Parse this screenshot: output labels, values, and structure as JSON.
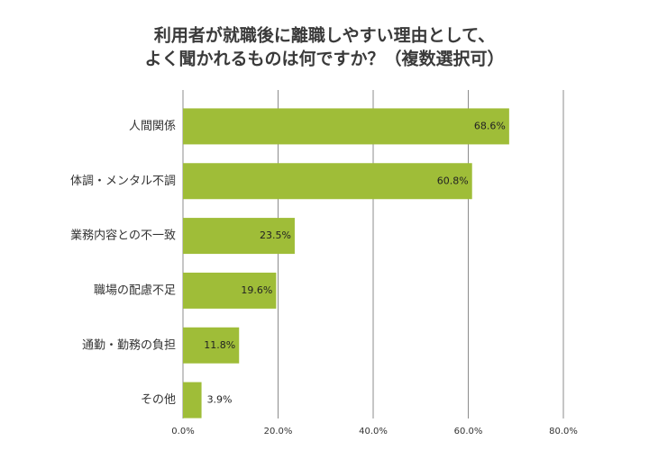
{
  "chart_data": {
    "type": "bar",
    "orientation": "horizontal",
    "title": [
      "利用者が就職後に離職しやすい理由として、",
      "よく聞かれるものは何ですか？（複数選択可）"
    ],
    "categories": [
      "人間関係",
      "体調・メンタル不調",
      "業務内容との不一致",
      "職場の配慮不足",
      "通勤・勤務の負担",
      "その他"
    ],
    "values": [
      68.6,
      60.8,
      23.5,
      19.6,
      11.8,
      3.9
    ],
    "value_labels": [
      "68.6%",
      "60.8%",
      "23.5%",
      "19.6%",
      "11.8%",
      "3.9%"
    ],
    "color": "#9fbd38",
    "xlim": [
      0,
      80
    ],
    "xticks": [
      {
        "value": 0,
        "label": "0.0%"
      },
      {
        "value": 20,
        "label": "20.0%"
      },
      {
        "value": 40,
        "label": "40.0%"
      },
      {
        "value": 60,
        "label": "60.0%"
      },
      {
        "value": 80,
        "label": "80.0%"
      }
    ],
    "grid": true
  }
}
